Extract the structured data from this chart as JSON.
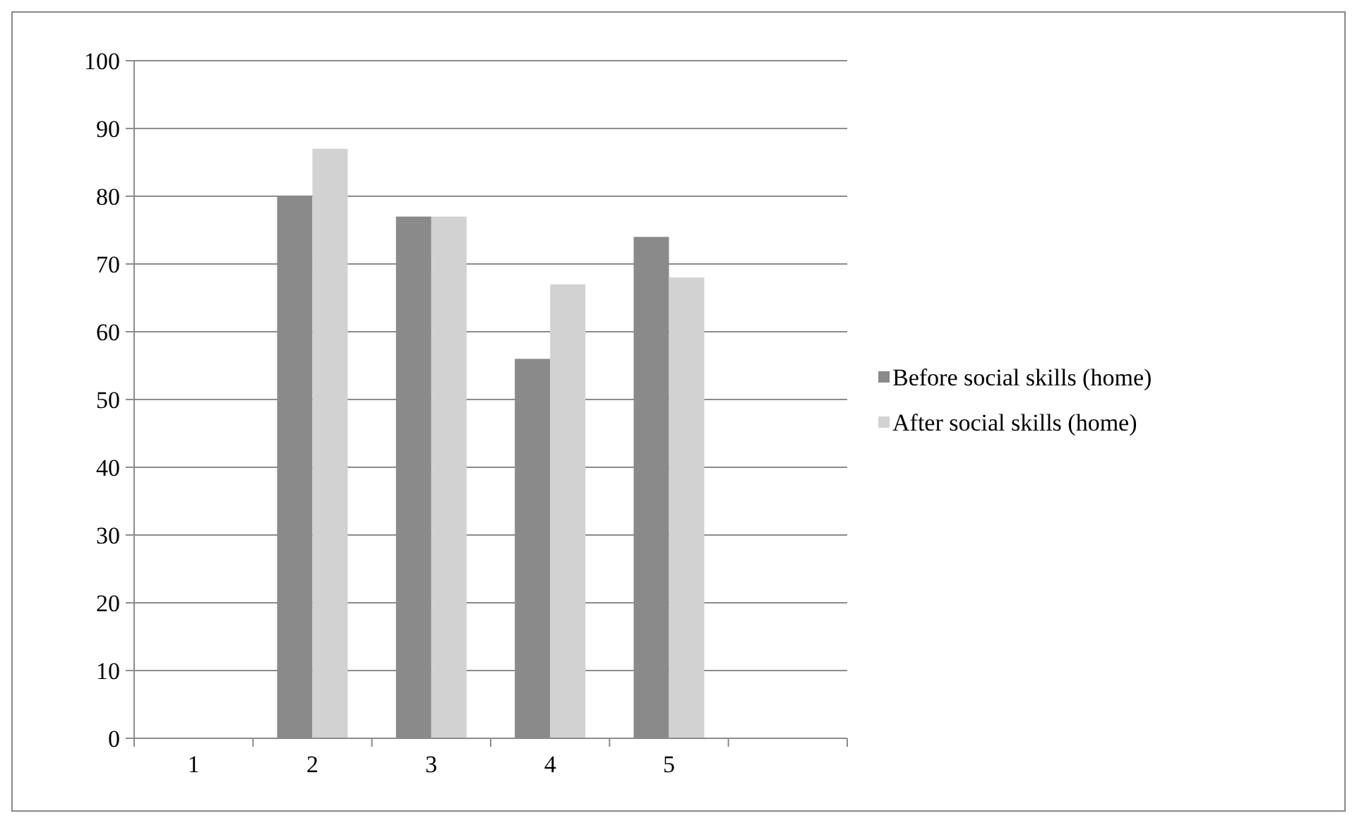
{
  "chart_data": {
    "type": "bar",
    "categories": [
      "1",
      "2",
      "3",
      "4",
      "5",
      null
    ],
    "series": [
      {
        "name": "Before social skills (home)",
        "color": "#8a8a8a",
        "values": [
          null,
          80,
          77,
          56,
          74,
          null
        ]
      },
      {
        "name": "After social skills (home)",
        "color": "#d2d2d2",
        "values": [
          null,
          87,
          77,
          67,
          68,
          null
        ]
      }
    ],
    "ylim": [
      0,
      100
    ],
    "yticks": [
      0,
      10,
      20,
      30,
      40,
      50,
      60,
      70,
      80,
      90,
      100
    ],
    "grid": "y",
    "legend": "right"
  }
}
